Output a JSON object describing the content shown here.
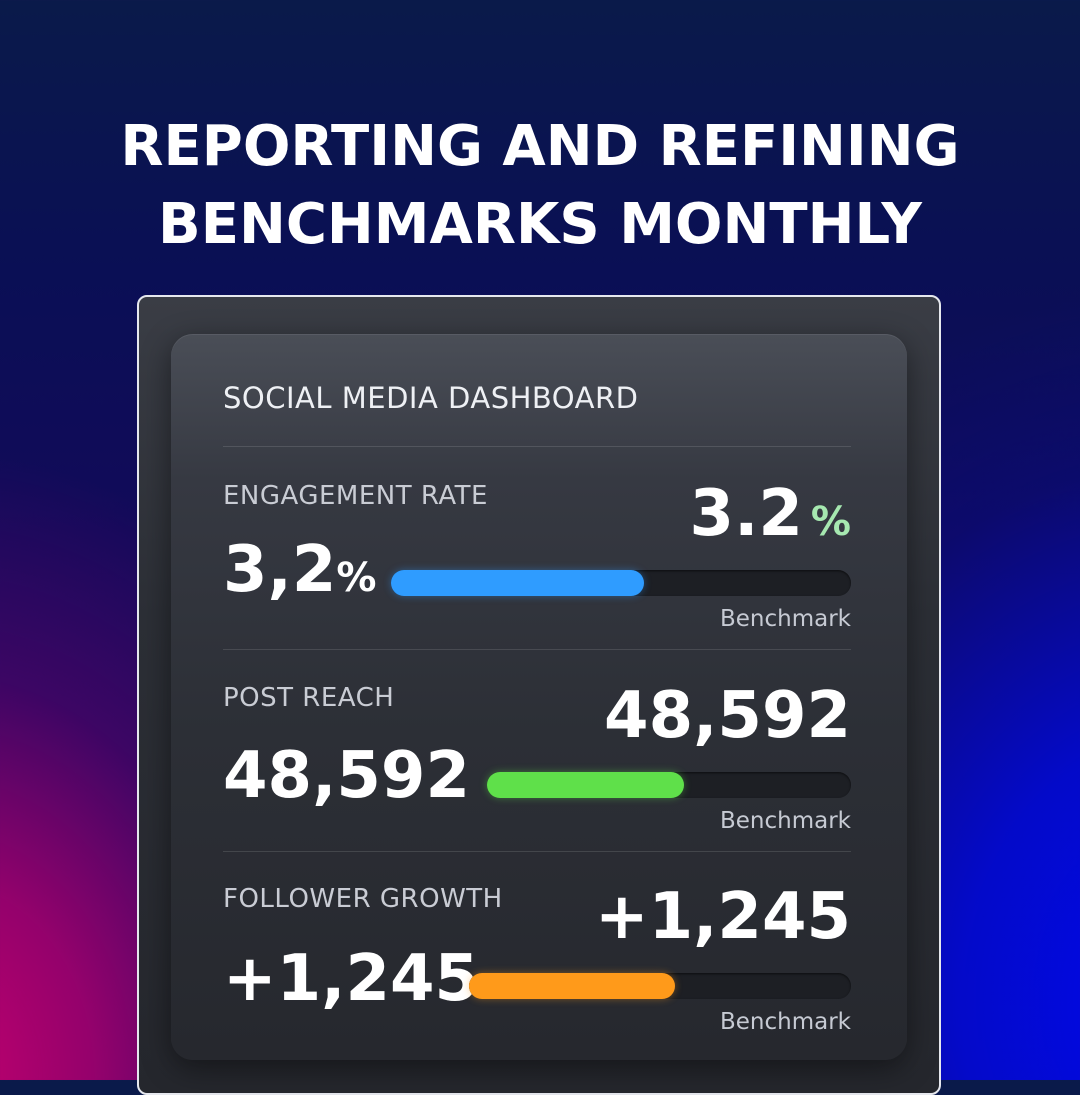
{
  "headline": {
    "line1": "REPORTING AND REFINING",
    "line2": "BENCHMARKS MONTHLY"
  },
  "dashboard": {
    "title": "SOCIAL MEDIA DASHBOARD",
    "metrics": [
      {
        "label": "ENGAGEMENT RATE",
        "value": "3,2",
        "value_unit": "%",
        "benchmark_value": "3.2",
        "benchmark_unit": "%",
        "benchmark_label": "Benchmark",
        "progress": 0.55,
        "bar_color": "#2f9cff"
      },
      {
        "label": "POST REACH",
        "value": "48,592",
        "value_unit": "",
        "benchmark_value": "48,592",
        "benchmark_unit": "",
        "benchmark_label": "Benchmark",
        "progress": 0.54,
        "bar_color": "#5fe04a"
      },
      {
        "label": "FOLLOWER GROWTH",
        "value": "+1,245",
        "value_unit": "",
        "benchmark_value": "+1,245",
        "benchmark_unit": "",
        "benchmark_label": "Benchmark",
        "progress": 0.54,
        "bar_color": "#ff9a1a"
      }
    ]
  }
}
